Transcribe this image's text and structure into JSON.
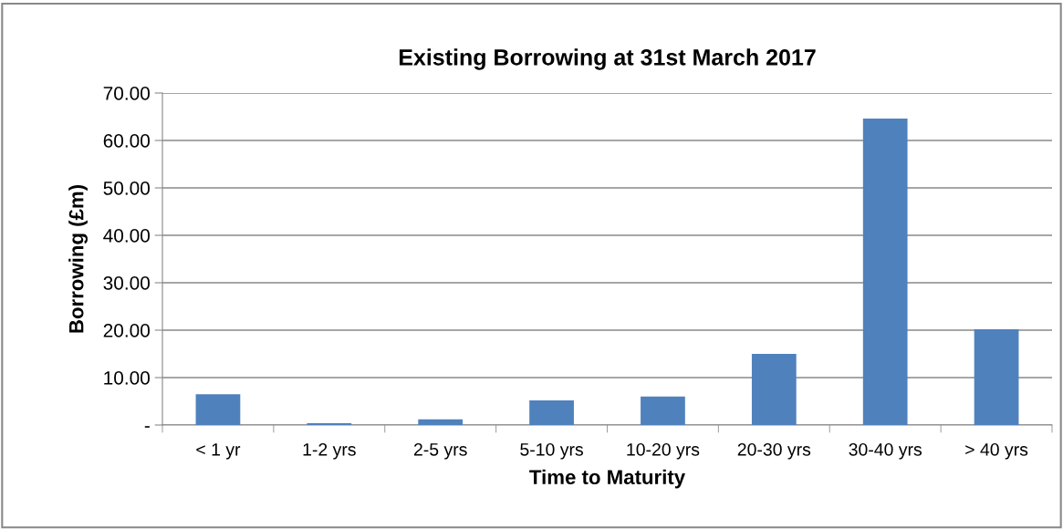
{
  "chart_data": {
    "type": "bar",
    "title": "Existing Borrowing at 31st March 2017",
    "xlabel": "Time to Maturity",
    "ylabel": "Borrowing (£m)",
    "categories": [
      "< 1 yr",
      "1-2 yrs",
      "2-5 yrs",
      "5-10 yrs",
      "10-20 yrs",
      "20-30 yrs",
      "30-40 yrs",
      "> 40 yrs"
    ],
    "values": [
      6.5,
      0.4,
      1.2,
      5.2,
      6.0,
      15.0,
      64.6,
      20.2
    ],
    "color": "#4f81bd",
    "ylim": [
      0,
      70
    ],
    "yticks": [
      {
        "value": 0,
        "label": "-"
      },
      {
        "value": 10,
        "label": "10.00"
      },
      {
        "value": 20,
        "label": "20.00"
      },
      {
        "value": 30,
        "label": "30.00"
      },
      {
        "value": 40,
        "label": "40.00"
      },
      {
        "value": 50,
        "label": "50.00"
      },
      {
        "value": 60,
        "label": "60.00"
      },
      {
        "value": 70,
        "label": "70.00"
      }
    ],
    "grid": "y"
  }
}
